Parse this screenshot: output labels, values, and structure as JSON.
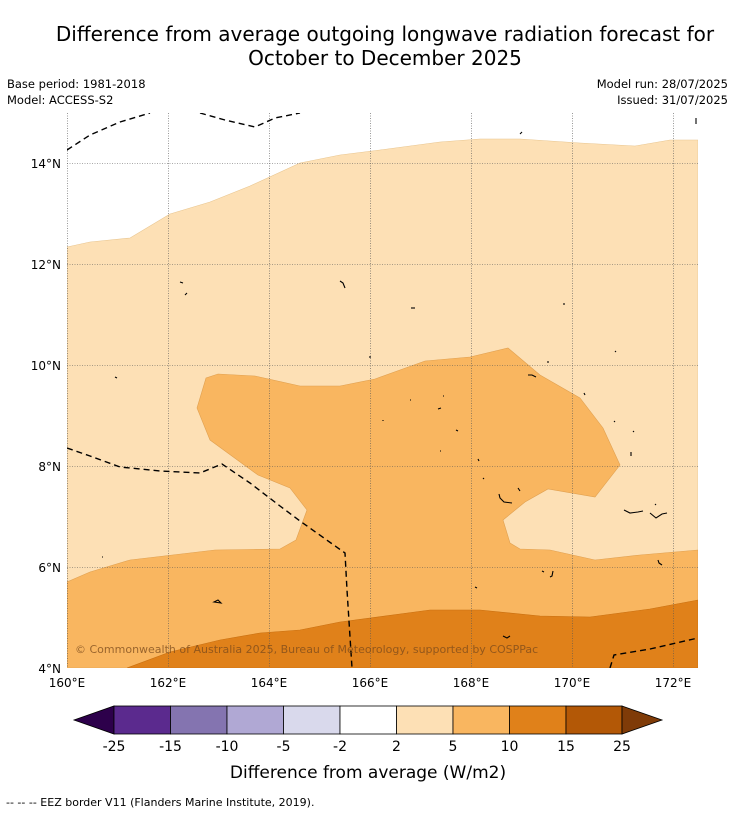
{
  "title_line1": "Difference from average outgoing longwave radiation forecast for",
  "title_line2": "October to December 2025",
  "meta": {
    "base_period": "Base period: 1981-2018",
    "model": "Model: ACCESS-S2",
    "model_run": "Model run: 28/07/2025",
    "issued": "Issued: 31/07/2025"
  },
  "map": {
    "lat_labels": [
      "14°N",
      "12°N",
      "10°N",
      "8°N",
      "6°N",
      "4°N"
    ],
    "lon_labels": [
      "160°E",
      "162°E",
      "164°E",
      "166°E",
      "168°E",
      "170°E",
      "172°E"
    ],
    "copyright": "© Commonwealth of Australia 2025, Bureau of Meteorology, supported by COSPPac"
  },
  "legend": {
    "ticks": [
      "-25",
      "-15",
      "-10",
      "-5",
      "-2",
      "2",
      "5",
      "10",
      "15",
      "25"
    ],
    "colors": [
      "#5b2a8e",
      "#8474b0",
      "#b0a8d4",
      "#d9d9ec",
      "#ffffff",
      "#fde0b5",
      "#f9b660",
      "#e0811a",
      "#b35806"
    ],
    "extend_low_color": "#2d004b",
    "extend_high_color": "#7f3b08",
    "label": "Difference from average (W/m2)"
  },
  "footer_note": "--  --  -- EEZ border V11 (Flanders Marine Institute, 2019)."
}
